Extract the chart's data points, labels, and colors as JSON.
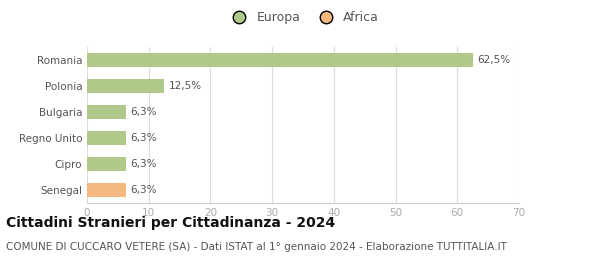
{
  "categories": [
    "Romania",
    "Polonia",
    "Bulgaria",
    "Regno Unito",
    "Cipro",
    "Senegal"
  ],
  "values": [
    62.5,
    12.5,
    6.3,
    6.3,
    6.3,
    6.3
  ],
  "labels": [
    "62,5%",
    "12,5%",
    "6,3%",
    "6,3%",
    "6,3%",
    "6,3%"
  ],
  "colors": [
    "#aec98a",
    "#aec98a",
    "#aec98a",
    "#aec98a",
    "#aec98a",
    "#f5b97f"
  ],
  "legend_items": [
    {
      "label": "Europa",
      "color": "#aec98a"
    },
    {
      "label": "Africa",
      "color": "#f5b97f"
    }
  ],
  "xlim": [
    0,
    70
  ],
  "xticks": [
    0,
    10,
    20,
    30,
    40,
    50,
    60,
    70
  ],
  "title": "Cittadini Stranieri per Cittadinanza - 2024",
  "subtitle": "COMUNE DI CUCCARO VETERE (SA) - Dati ISTAT al 1° gennaio 2024 - Elaborazione TUTTITALIA.IT",
  "title_fontsize": 10,
  "subtitle_fontsize": 7.5,
  "label_fontsize": 7.5,
  "tick_fontsize": 7.5,
  "bar_height": 0.55,
  "background_color": "#ffffff",
  "grid_color": "#dddddd"
}
